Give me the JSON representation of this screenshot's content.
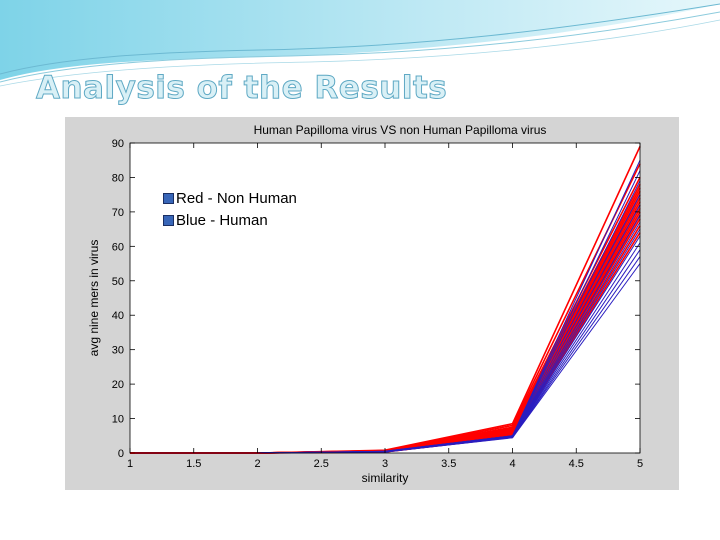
{
  "slide": {
    "title": "Analysis of the Results"
  },
  "legend": {
    "red": "Red - Non Human",
    "blue": "Blue - Human"
  },
  "colors": {
    "non_human": "#ff0000",
    "human": "#2a1ec0",
    "title_fill": "#d9f0f6",
    "title_stroke": "#5fa9c4"
  },
  "chart_data": {
    "type": "line",
    "title": "Human Papilloma virus VS non Human Papilloma virus",
    "xlabel": "similarity",
    "ylabel": "avg nine mers in virus",
    "xlim": [
      1,
      5
    ],
    "ylim": [
      0,
      90
    ],
    "xticks": [
      "1",
      "1.5",
      "2",
      "2.5",
      "3",
      "3.5",
      "4",
      "4.5",
      "5"
    ],
    "yticks": [
      "0",
      "10",
      "20",
      "30",
      "40",
      "50",
      "60",
      "70",
      "80",
      "90"
    ],
    "x": [
      1,
      2,
      3,
      4,
      5
    ],
    "grid": false,
    "series": [
      {
        "group": "non-human",
        "color": "#ff0000",
        "values": [
          0,
          0,
          0.8,
          8.5,
          89
        ]
      },
      {
        "group": "non-human",
        "color": "#ff0000",
        "values": [
          0,
          0,
          0.7,
          8,
          84
        ]
      },
      {
        "group": "non-human",
        "color": "#ff0000",
        "values": [
          0,
          0,
          0.7,
          7.5,
          80
        ]
      },
      {
        "group": "non-human",
        "color": "#ff0000",
        "values": [
          0,
          0,
          0.6,
          7.2,
          78
        ]
      },
      {
        "group": "non-human",
        "color": "#ff0000",
        "values": [
          0,
          0,
          0.6,
          7,
          77
        ]
      },
      {
        "group": "non-human",
        "color": "#ff0000",
        "values": [
          0,
          0,
          0.6,
          6.8,
          76
        ]
      },
      {
        "group": "non-human",
        "color": "#ff0000",
        "values": [
          0,
          0,
          0.5,
          6.5,
          75
        ]
      },
      {
        "group": "non-human",
        "color": "#ff0000",
        "values": [
          0,
          0,
          0.5,
          6.3,
          74
        ]
      },
      {
        "group": "non-human",
        "color": "#ff0000",
        "values": [
          0,
          0,
          0.5,
          6,
          73
        ]
      },
      {
        "group": "non-human",
        "color": "#ff0000",
        "values": [
          0,
          0,
          0.5,
          5.8,
          72
        ]
      },
      {
        "group": "non-human",
        "color": "#ff0000",
        "values": [
          0,
          0,
          0.4,
          5.6,
          71
        ]
      },
      {
        "group": "non-human",
        "color": "#ff0000",
        "values": [
          0,
          0,
          0.4,
          5.4,
          70
        ]
      },
      {
        "group": "non-human",
        "color": "#ff0000",
        "values": [
          0,
          0,
          0.4,
          5.2,
          69
        ]
      },
      {
        "group": "non-human",
        "color": "#ff0000",
        "values": [
          0,
          0,
          0.4,
          5,
          68
        ]
      },
      {
        "group": "non-human",
        "color": "#ff0000",
        "values": [
          0,
          0,
          0.3,
          4.8,
          66
        ]
      },
      {
        "group": "non-human",
        "color": "#ff0000",
        "values": [
          0,
          0,
          0.3,
          4.6,
          64
        ]
      },
      {
        "group": "human",
        "color": "#2a1ec0",
        "values": [
          0,
          0,
          0.5,
          5,
          85
        ]
      },
      {
        "group": "human",
        "color": "#2a1ec0",
        "values": [
          0,
          0,
          0.5,
          5,
          82
        ]
      },
      {
        "group": "human",
        "color": "#2a1ec0",
        "values": [
          0,
          0,
          0.5,
          5,
          79
        ]
      },
      {
        "group": "human",
        "color": "#2a1ec0",
        "values": [
          0,
          0,
          0.4,
          5,
          75
        ]
      },
      {
        "group": "human",
        "color": "#2a1ec0",
        "values": [
          0,
          0,
          0.4,
          4.8,
          72
        ]
      },
      {
        "group": "human",
        "color": "#2a1ec0",
        "values": [
          0,
          0,
          0.4,
          4.8,
          69
        ]
      },
      {
        "group": "human",
        "color": "#2a1ec0",
        "values": [
          0,
          0,
          0.4,
          4.7,
          67
        ]
      },
      {
        "group": "human",
        "color": "#2a1ec0",
        "values": [
          0,
          0,
          0.4,
          4.7,
          65
        ]
      },
      {
        "group": "human",
        "color": "#2a1ec0",
        "values": [
          0,
          0,
          0.3,
          4.6,
          63
        ]
      },
      {
        "group": "human",
        "color": "#2a1ec0",
        "values": [
          0,
          0,
          0.3,
          4.6,
          61
        ]
      },
      {
        "group": "human",
        "color": "#2a1ec0",
        "values": [
          0,
          0,
          0.3,
          4.5,
          59
        ]
      },
      {
        "group": "human",
        "color": "#2a1ec0",
        "values": [
          0,
          0,
          0.3,
          4.5,
          57
        ]
      },
      {
        "group": "human",
        "color": "#2a1ec0",
        "values": [
          0,
          0,
          0.3,
          4.4,
          55
        ]
      }
    ]
  }
}
